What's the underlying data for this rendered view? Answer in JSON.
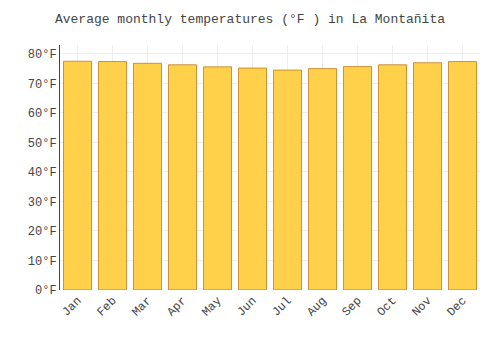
{
  "chart_data": {
    "type": "bar",
    "title": "Average monthly temperatures (°F ) in La Montañita",
    "categories": [
      "Jan",
      "Feb",
      "Mar",
      "Apr",
      "May",
      "Jun",
      "Jul",
      "Aug",
      "Sep",
      "Oct",
      "Nov",
      "Dec"
    ],
    "values": [
      77.5,
      77.4,
      76.8,
      76.3,
      75.6,
      75.2,
      74.5,
      75.0,
      75.7,
      76.3,
      77.0,
      77.4
    ],
    "color": "#FFD04A",
    "ylim": [
      0,
      83
    ],
    "yticks": [
      {
        "value": 0,
        "label": "0°F"
      },
      {
        "value": 10,
        "label": "10°F"
      },
      {
        "value": 20,
        "label": "20°F"
      },
      {
        "value": 30,
        "label": "30°F"
      },
      {
        "value": 40,
        "label": "40°F"
      },
      {
        "value": 50,
        "label": "50°F"
      },
      {
        "value": 60,
        "label": "60°F"
      },
      {
        "value": 70,
        "label": "70°F"
      },
      {
        "value": 80,
        "label": "80°F"
      }
    ],
    "grid": true
  }
}
